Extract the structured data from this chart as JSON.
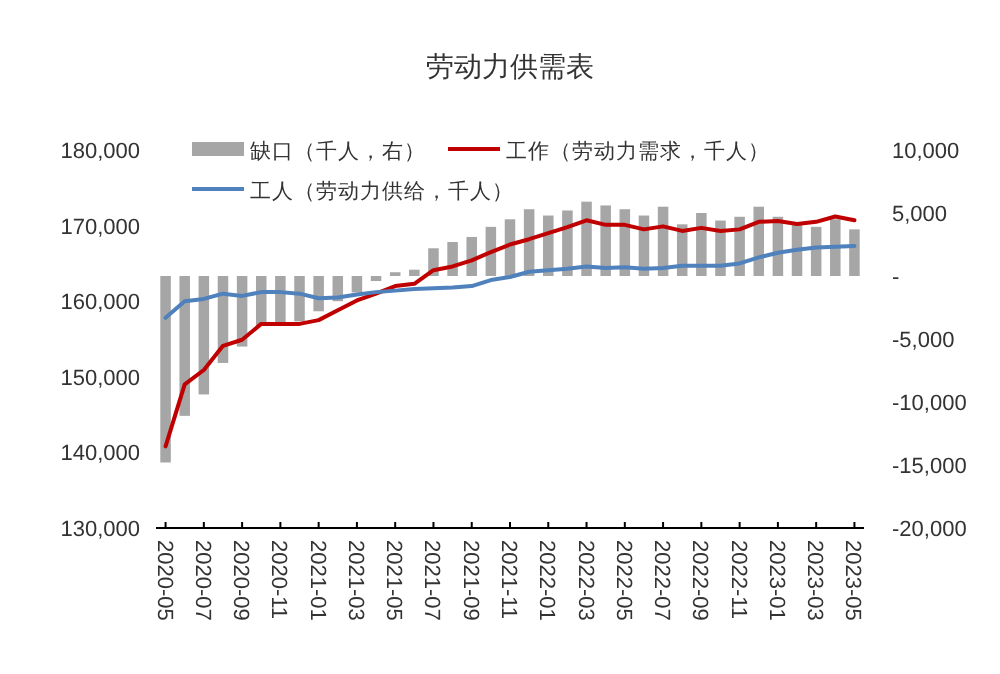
{
  "chart_data": {
    "type": "line",
    "title": "劳动力供需表",
    "categories": [
      "2020-05",
      null,
      "2020-07",
      null,
      "2020-09",
      null,
      "2020-11",
      null,
      "2021-01",
      null,
      "2021-03",
      null,
      "2021-05",
      null,
      "2021-07",
      null,
      "2021-09",
      null,
      "2021-11",
      null,
      "2022-01",
      null,
      "2022-03",
      null,
      "2022-05",
      null,
      "2022-07",
      null,
      "2022-09",
      null,
      "2022-11",
      null,
      "2023-01",
      null,
      "2023-03",
      null,
      "2023-05"
    ],
    "series": [
      {
        "name": "缺口（千人，右）",
        "type": "bar",
        "axis": "y2",
        "color": "#a6a6a6",
        "values": [
          -14800,
          -11100,
          -9400,
          -6900,
          -5600,
          -3900,
          -3900,
          -3600,
          -2800,
          -2000,
          -1300,
          -400,
          300,
          500,
          2200,
          2700,
          3100,
          3900,
          4500,
          5300,
          4800,
          5200,
          5900,
          5600,
          5300,
          4800,
          5500,
          4100,
          5000,
          4400,
          4700,
          5500,
          4700,
          4200,
          3900,
          4500,
          3700
        ]
      },
      {
        "name": "工作（劳动力需求，千人）",
        "color": "#c00000",
        "values": [
          140800,
          149000,
          150900,
          154100,
          154900,
          157000,
          157000,
          157000,
          157500,
          158800,
          160100,
          161000,
          162000,
          162300,
          164100,
          164600,
          165400,
          166500,
          167500,
          168200,
          169000,
          169800,
          170700,
          170100,
          170100,
          169500,
          169900,
          169300,
          169700,
          169300,
          169500,
          170500,
          170600,
          170200,
          170500,
          171200,
          170700
        ]
      },
      {
        "name": "工人（劳动力供给，千人）",
        "color": "#4f81bd",
        "values": [
          157800,
          160000,
          160300,
          161000,
          160700,
          161200,
          161200,
          161000,
          160400,
          160500,
          160900,
          161200,
          161400,
          161600,
          161700,
          161800,
          162000,
          162800,
          163200,
          163900,
          164100,
          164300,
          164600,
          164400,
          164500,
          164300,
          164400,
          164700,
          164700,
          164700,
          165000,
          165800,
          166400,
          166800,
          167100,
          167200,
          167300
        ]
      }
    ],
    "ylim": [
      130000,
      180000
    ],
    "yticks": [
      {
        "value": 130000,
        "label": "130,000"
      },
      {
        "value": 140000,
        "label": "140,000"
      },
      {
        "value": 150000,
        "label": "150,000"
      },
      {
        "value": 160000,
        "label": "160,000"
      },
      {
        "value": 170000,
        "label": "170,000"
      },
      {
        "value": 180000,
        "label": "180,000"
      }
    ],
    "y2lim": [
      -20000,
      10000
    ],
    "y2ticks": [
      {
        "value": -20000,
        "label": "-20,000"
      },
      {
        "value": -15000,
        "label": "-15,000"
      },
      {
        "value": -10000,
        "label": "-10,000"
      },
      {
        "value": -5000,
        "label": "-5,000"
      },
      {
        "value": 0,
        "label": "-"
      },
      {
        "value": 5000,
        "label": "5,000"
      },
      {
        "value": 10000,
        "label": "10,000"
      }
    ],
    "legend": "top",
    "grid": false
  }
}
